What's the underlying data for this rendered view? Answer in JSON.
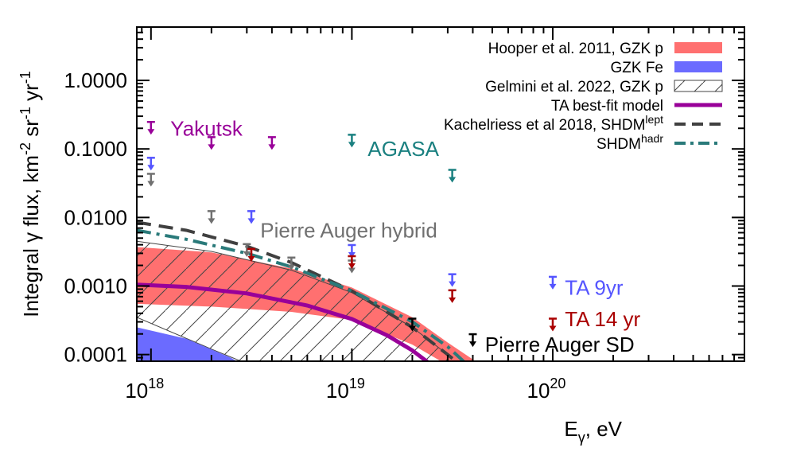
{
  "chart_data": {
    "type": "scatter",
    "title": "",
    "xlabel": "E",
    "xlabel_sub": "γ",
    "xlabel_unit": ", eV",
    "ylabel": "Integral γ flux, km",
    "ylabel_sup1": "-2",
    "ylabel_mid": " sr",
    "ylabel_sup2": "-1",
    "ylabel_mid2": " yr",
    "ylabel_sup3": "-1",
    "xscale": "log",
    "yscale": "log",
    "xlim": [
      8.5e+17,
      9e+20
    ],
    "ylim": [
      8e-05,
      6
    ],
    "x_ticks": [
      {
        "value": 1e+18,
        "base": "10",
        "exp": "18"
      },
      {
        "value": 1e+19,
        "base": "10",
        "exp": "19"
      },
      {
        "value": 1e+20,
        "base": "10",
        "exp": "20"
      }
    ],
    "y_ticks": [
      {
        "value": 1,
        "label": "1.0000"
      },
      {
        "value": 0.1,
        "label": "0.1000"
      },
      {
        "value": 0.01,
        "label": "0.0100"
      },
      {
        "value": 0.001,
        "label": "0.0010"
      },
      {
        "value": 0.0001,
        "label": "0.0001"
      }
    ],
    "legend": {
      "position": "top-right",
      "entries": [
        {
          "label": "Hooper et al. 2011, GZK p",
          "style": "fill",
          "color": "#ff7070"
        },
        {
          "label": "GZK Fe",
          "style": "fill",
          "color": "#6b6bff"
        },
        {
          "label": "Gelmini et al. 2022, GZK p",
          "style": "hatch",
          "color": "#444444"
        },
        {
          "label": "TA best-fit model",
          "style": "solid",
          "color": "#990099"
        },
        {
          "label": "Kachelriess et al 2018, SHDM",
          "sup": "lept",
          "style": "dashed",
          "color": "#404040"
        },
        {
          "label": "SHDM",
          "sup": "hadr",
          "style": "dashdot",
          "color": "#2a7a7a"
        }
      ]
    },
    "series": [
      {
        "name": "Yakutsk",
        "color": "#990099",
        "points": [
          [
            1e+18,
            0.2
          ],
          [
            2e+18,
            0.12
          ],
          [
            4e+18,
            0.12
          ]
        ]
      },
      {
        "name": "AGASA",
        "color": "#1a8080",
        "points": [
          [
            1e+19,
            0.13
          ],
          [
            3.16e+19,
            0.04
          ]
        ]
      },
      {
        "name": "Pierre Auger hybrid",
        "color": "#707070",
        "points": [
          [
            1e+18,
            0.035
          ],
          [
            2e+18,
            0.01
          ],
          [
            3e+18,
            0.0033
          ],
          [
            5e+18,
            0.0021
          ],
          [
            1e+19,
            0.0019
          ]
        ]
      },
      {
        "name": "TA 9yr",
        "color": "#5555ff",
        "points": [
          [
            1e+18,
            0.06
          ],
          [
            3.16e+18,
            0.01
          ],
          [
            1e+19,
            0.0032
          ],
          [
            3.16e+19,
            0.0012
          ],
          [
            1e+20,
            0.0011
          ]
        ]
      },
      {
        "name": "TA 14 yr",
        "color": "#aa0000",
        "points": [
          [
            3.16e+18,
            0.0028
          ],
          [
            1e+19,
            0.0022
          ],
          [
            3.16e+19,
            0.0007
          ],
          [
            1e+20,
            0.00027
          ]
        ]
      },
      {
        "name": "Pierre Auger SD",
        "color": "#000000",
        "points": [
          [
            2e+19,
            0.00027
          ],
          [
            4e+19,
            0.00016
          ]
        ]
      }
    ],
    "bands": [
      {
        "name": "Hooper et al. 2011, GZK p",
        "color": "#ff7070",
        "x": [
          8.5e+17,
          2e+18,
          5e+18,
          1e+19,
          2e+19,
          3e+19,
          4e+19,
          5e+19
        ],
        "upper": [
          0.0037,
          0.0031,
          0.0018,
          0.00095,
          0.00035,
          0.00015,
          8.5e-05,
          5e-05
        ],
        "lower": [
          0.00055,
          0.0005,
          0.00042,
          0.00032,
          0.00014,
          7e-05,
          4e-05,
          2e-05
        ]
      },
      {
        "name": "Gelmini et al. 2022, GZK p",
        "color": "#444444",
        "x": [
          8.5e+17,
          2e+18,
          5e+18,
          1e+19,
          2e+19,
          3e+19
        ],
        "upper": [
          0.0045,
          0.0032,
          0.0017,
          0.0008,
          0.00025,
          0.0001
        ],
        "lower": [
          0.00035,
          0.00012,
          4e-05,
          2e-05,
          8e-06,
          4e-06
        ]
      },
      {
        "name": "GZK Fe",
        "color": "#6b6bff",
        "x": [
          8.5e+17,
          1.5e+18,
          2.5e+18,
          4e+18
        ],
        "upper": [
          0.00025,
          0.00017,
          9e-05,
          4e-05
        ],
        "lower": [
          1e-05,
          1e-05,
          1e-05,
          1e-05
        ]
      }
    ],
    "lines": [
      {
        "name": "TA best-fit model",
        "color": "#990099",
        "style": "solid",
        "x": [
          8.5e+17,
          1.5e+18,
          3e+18,
          6e+18,
          1e+19,
          1.5e+19,
          2e+19,
          2.5e+19
        ],
        "y": [
          0.00105,
          0.00097,
          0.00078,
          0.00052,
          0.00033,
          0.00019,
          0.000115,
          7e-05
        ]
      },
      {
        "name": "Kachelriess et al 2018, SHDM lept",
        "color": "#404040",
        "style": "dashed",
        "x": [
          8.5e+17,
          1.5e+18,
          3e+18,
          5e+18,
          1e+19,
          2e+19,
          3e+19,
          4e+19
        ],
        "y": [
          0.0085,
          0.0065,
          0.0038,
          0.0022,
          0.00085,
          0.00025,
          0.0001,
          5e-05
        ]
      },
      {
        "name": "SHDM hadr",
        "color": "#2a7a7a",
        "style": "dashdot",
        "x": [
          8.5e+17,
          1.5e+18,
          3e+18,
          5e+18,
          1e+19,
          2e+19,
          3e+19,
          4e+19
        ],
        "y": [
          0.0065,
          0.0048,
          0.003,
          0.0019,
          0.00085,
          0.0003,
          0.00013,
          6e-05
        ]
      }
    ],
    "annotations": [
      {
        "text": "Yakutsk",
        "color": "#990099",
        "x": 1.25e+18,
        "y": 0.2
      },
      {
        "text": "AGASA",
        "color": "#1a8080",
        "x": 1.2e+19,
        "y": 0.1
      },
      {
        "text": "Pierre Auger hybrid",
        "color": "#707070",
        "x": 3.5e+18,
        "y": 0.0065
      },
      {
        "text": "TA 9yr",
        "color": "#5555ff",
        "x": 1.15e+20,
        "y": 0.00095
      },
      {
        "text": "TA 14 yr",
        "color": "#aa0000",
        "x": 1.15e+20,
        "y": 0.00033
      },
      {
        "text": "Pierre Auger SD",
        "color": "#000000",
        "x": 4.6e+19,
        "y": 0.00014
      }
    ]
  }
}
